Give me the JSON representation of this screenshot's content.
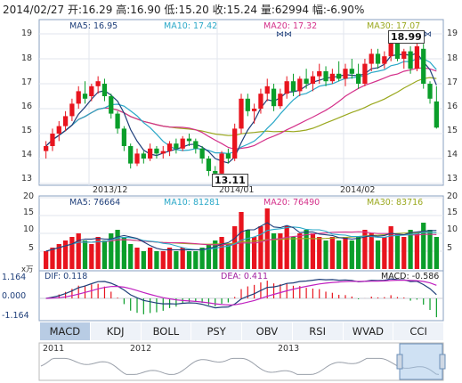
{
  "header": {
    "quote": "2014/02/27 开:16.29 高:16.90 低:15.20 收:15.24 量:62994 幅:-6.90%"
  },
  "colors": {
    "up": "#e8141e",
    "down": "#0a9e2a",
    "ma5": "#1f3f7a",
    "ma10": "#2aa8c8",
    "ma20": "#d4308a",
    "ma30": "#9aa81e"
  },
  "kline": {
    "ma_labels": {
      "ma5": "MA5: 16.95",
      "ma10": "MA10: 17.42",
      "ma20": "MA20: 17.32",
      "ma30": "MA30: 17.07"
    },
    "y_ticks": [
      "19",
      "18",
      "17",
      "16",
      "15",
      "14",
      "13"
    ],
    "x_labels": [
      "2013/12",
      "2014/01",
      "2014/02"
    ],
    "low_callout": "13.11",
    "high_callout": "18.99",
    "icons": [
      "double-arrow-icon",
      "double-arrow-icon",
      "double-arrow-icon"
    ]
  },
  "volume": {
    "ma_labels": {
      "ma5": "MA5: 76664",
      "ma10": "MA10: 81281",
      "ma20": "MA20: 76490",
      "ma30": "MA30: 83716"
    },
    "y_ticks": [
      "20",
      "15",
      "10",
      "5"
    ],
    "unit": "x万"
  },
  "macd": {
    "labels": {
      "dif": "DIF: 0.118",
      "dea": "DEA: 0.411",
      "macd": "MACD: -0.586"
    },
    "y_ticks": [
      "1.164",
      "0.000",
      "-1.164"
    ]
  },
  "tabs": [
    "MACD",
    "KDJ",
    "BOLL",
    "PSY",
    "OBV",
    "RSI",
    "WVAD",
    "CCI"
  ],
  "active_tab": "MACD",
  "overview": {
    "years": [
      "2011",
      "2012",
      "2013"
    ]
  },
  "chart_data": [
    {
      "type": "candlestick",
      "ylim": [
        13,
        19.5
      ],
      "x_labels": [
        "2013/12",
        "2014/01",
        "2014/02"
      ],
      "candles": [
        [
          14.3,
          14.7,
          14.0,
          14.5
        ],
        [
          14.5,
          15.2,
          14.3,
          15.0
        ],
        [
          15.0,
          15.5,
          14.7,
          15.3
        ],
        [
          15.3,
          15.9,
          15.1,
          15.7
        ],
        [
          15.7,
          16.4,
          15.5,
          16.2
        ],
        [
          16.2,
          16.9,
          16.0,
          16.7
        ],
        [
          16.6,
          17.1,
          16.2,
          16.4
        ],
        [
          16.5,
          17.0,
          16.3,
          16.9
        ],
        [
          16.9,
          17.3,
          16.6,
          17.1
        ],
        [
          17.0,
          17.2,
          16.3,
          16.5
        ],
        [
          16.5,
          16.6,
          15.6,
          15.8
        ],
        [
          15.8,
          15.9,
          15.0,
          15.2
        ],
        [
          15.2,
          15.3,
          14.3,
          14.5
        ],
        [
          14.5,
          14.6,
          13.6,
          13.8
        ],
        [
          13.8,
          14.4,
          13.7,
          14.2
        ],
        [
          14.2,
          14.3,
          13.8,
          14.0
        ],
        [
          14.0,
          14.6,
          13.9,
          14.4
        ],
        [
          14.4,
          14.5,
          14.0,
          14.2
        ],
        [
          14.2,
          14.5,
          14.0,
          14.3
        ],
        [
          14.3,
          14.7,
          14.1,
          14.6
        ],
        [
          14.6,
          14.8,
          14.2,
          14.4
        ],
        [
          14.4,
          14.9,
          14.3,
          14.8
        ],
        [
          14.8,
          15.0,
          14.5,
          14.7
        ],
        [
          14.7,
          14.8,
          14.2,
          14.4
        ],
        [
          14.4,
          14.5,
          13.8,
          14.0
        ],
        [
          14.0,
          14.1,
          13.3,
          13.5
        ],
        [
          13.5,
          13.7,
          13.11,
          13.4
        ],
        [
          13.4,
          14.3,
          13.3,
          14.2
        ],
        [
          14.2,
          14.4,
          13.8,
          14.0
        ],
        [
          14.0,
          15.4,
          13.9,
          15.2
        ],
        [
          15.2,
          16.6,
          15.0,
          16.4
        ],
        [
          16.4,
          16.6,
          15.7,
          15.9
        ],
        [
          15.9,
          16.2,
          15.4,
          16.0
        ],
        [
          16.0,
          16.8,
          15.8,
          16.6
        ],
        [
          16.6,
          17.2,
          16.3,
          16.9
        ],
        [
          16.8,
          17.0,
          15.9,
          16.1
        ],
        [
          16.1,
          16.8,
          16.0,
          16.6
        ],
        [
          16.6,
          17.3,
          16.4,
          17.1
        ],
        [
          17.1,
          17.4,
          16.5,
          16.7
        ],
        [
          16.7,
          17.3,
          16.5,
          17.2
        ],
        [
          17.2,
          17.6,
          16.8,
          17.0
        ],
        [
          17.0,
          17.5,
          16.7,
          17.3
        ],
        [
          17.3,
          17.8,
          17.0,
          17.5
        ],
        [
          17.5,
          17.7,
          16.9,
          17.1
        ],
        [
          17.1,
          17.6,
          17.0,
          17.4
        ],
        [
          17.4,
          17.9,
          17.1,
          17.2
        ],
        [
          17.2,
          17.8,
          16.9,
          17.6
        ],
        [
          17.6,
          18.0,
          17.2,
          17.4
        ],
        [
          17.4,
          17.8,
          16.8,
          17.0
        ],
        [
          17.0,
          18.0,
          16.9,
          17.8
        ],
        [
          17.8,
          18.4,
          17.5,
          18.2
        ],
        [
          18.2,
          18.4,
          17.6,
          17.8
        ],
        [
          17.8,
          18.3,
          17.6,
          18.1
        ],
        [
          18.1,
          18.99,
          17.9,
          18.7
        ],
        [
          18.7,
          18.8,
          17.9,
          18.0
        ],
        [
          18.0,
          18.4,
          17.6,
          18.3
        ],
        [
          18.3,
          18.5,
          17.4,
          17.6
        ],
        [
          17.6,
          18.7,
          17.5,
          18.5
        ],
        [
          18.4,
          18.6,
          16.8,
          17.0
        ],
        [
          17.0,
          17.1,
          16.2,
          16.4
        ],
        [
          16.29,
          16.9,
          15.2,
          15.24
        ]
      ]
    },
    {
      "type": "bar",
      "name": "volume",
      "ylim": [
        0,
        20
      ],
      "values": [
        5,
        6,
        7,
        8,
        9,
        10,
        8,
        7,
        9,
        8,
        10,
        11,
        9,
        7,
        6,
        5,
        6,
        5,
        5,
        6,
        5,
        6,
        5,
        5,
        6,
        7,
        8,
        9,
        7,
        12,
        16,
        11,
        9,
        12,
        17,
        10,
        10,
        12,
        9,
        10,
        11,
        10,
        9,
        8,
        9,
        8,
        9,
        8,
        9,
        11,
        10,
        8,
        9,
        12,
        10,
        9,
        11,
        10,
        13,
        11,
        9
      ]
    },
    {
      "type": "bar",
      "name": "MACD",
      "ylim": [
        -1.164,
        1.164
      ],
      "dif": 0.118,
      "dea": 0.411,
      "macd": -0.586
    }
  ]
}
